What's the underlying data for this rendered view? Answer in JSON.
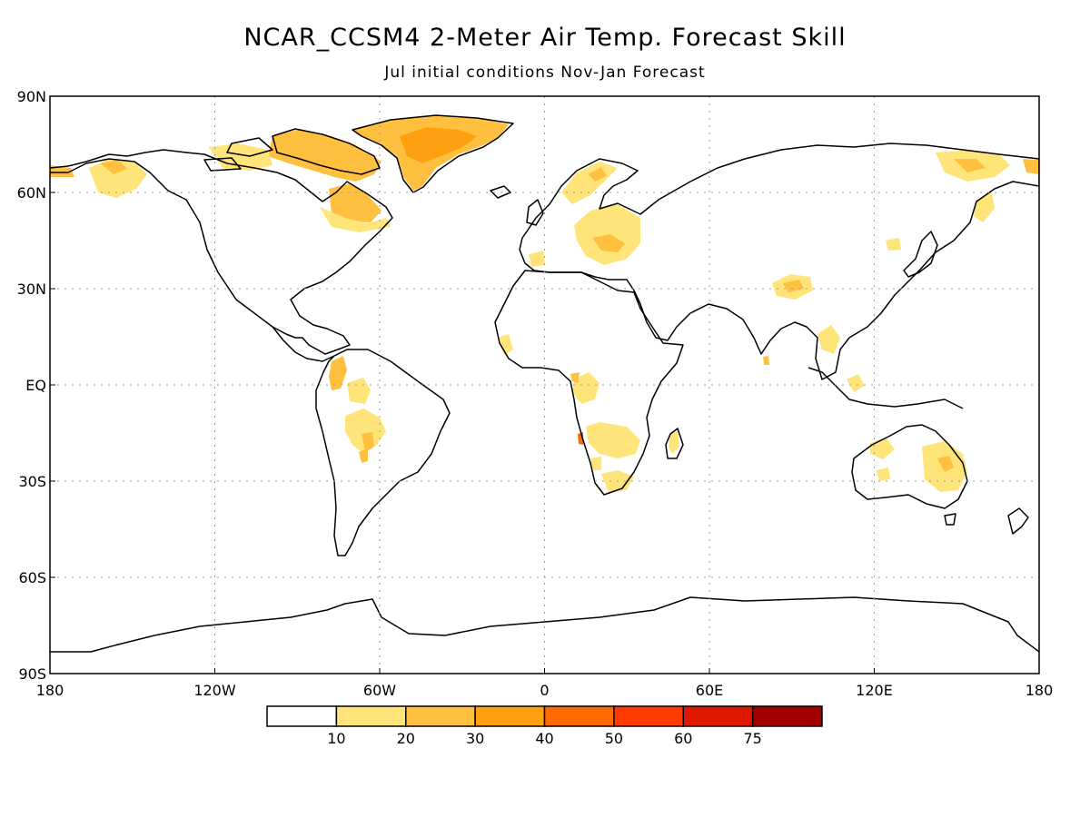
{
  "title": "NCAR_CCSM4 2-Meter Air Temp. Forecast Skill",
  "subtitle": "Jul initial conditions   Nov-Jan Forecast",
  "axes": {
    "lat_labels": [
      "90N",
      "60N",
      "30N",
      "EQ",
      "30S",
      "60S",
      "90S"
    ],
    "lat_values": [
      90,
      60,
      30,
      0,
      -30,
      -60,
      -90
    ],
    "lon_labels": [
      "180",
      "120W",
      "60W",
      "0",
      "60E",
      "120E",
      "180"
    ],
    "lon_values": [
      -180,
      -120,
      -60,
      0,
      60,
      120,
      180
    ]
  },
  "colorbar": {
    "colors": [
      "#ffffff",
      "#ffe47a",
      "#ffc040",
      "#ffa010",
      "#ff6a00",
      "#ff3a00",
      "#e01800",
      "#a00000"
    ],
    "labels": [
      "10",
      "20",
      "30",
      "40",
      "50",
      "60",
      "75"
    ]
  },
  "palette": {
    "land_outline": "#000000",
    "grid": "#9a9a9a",
    "skill_10_20": "#ffe47a",
    "skill_20_30": "#ffc040",
    "skill_30_40": "#ffa010",
    "skill_40_50": "#ff6a00"
  }
}
